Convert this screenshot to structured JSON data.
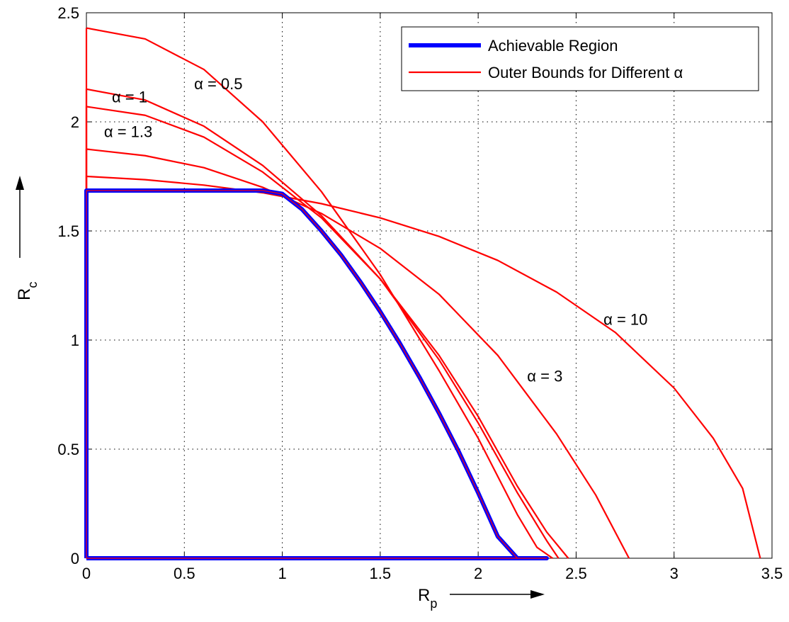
{
  "chart_data": {
    "type": "line",
    "xlabel": "R",
    "xlabel_sub": "p",
    "ylabel": "R",
    "ylabel_sub": "c",
    "xlim": [
      0,
      3.5
    ],
    "ylim": [
      0,
      2.5
    ],
    "xticks": [
      "0",
      "0.5",
      "1",
      "1.5",
      "2",
      "2.5",
      "3",
      "3.5"
    ],
    "yticks": [
      "0",
      "0.5",
      "1",
      "1.5",
      "2",
      "2.5"
    ],
    "grid": true,
    "legend_position": "top-right",
    "legend": [
      {
        "label": "Achievable Region",
        "color": "#0000ff"
      },
      {
        "label": "Outer Bounds for Different α",
        "color": "#ff0000"
      }
    ],
    "achievable_region": {
      "name": "Achievable Region",
      "color": "#0000ff",
      "x": [
        0,
        0,
        0.45,
        0.9,
        1.0,
        1.1,
        1.2,
        1.3,
        1.4,
        1.5,
        1.6,
        1.7,
        1.8,
        1.9,
        2.0,
        2.1,
        2.2,
        2.3,
        2.35,
        0
      ],
      "y": [
        0,
        1.685,
        1.685,
        1.685,
        1.67,
        1.6,
        1.5,
        1.39,
        1.265,
        1.13,
        0.985,
        0.83,
        0.665,
        0.49,
        0.3,
        0.1,
        0,
        0,
        0,
        0
      ]
    },
    "outer_bounds": [
      {
        "alpha": "0.5",
        "color": "#ff0000",
        "x": [
          0,
          0.3,
          0.6,
          0.9,
          1.2,
          1.5,
          1.8,
          2.0,
          2.2,
          2.3,
          2.38
        ],
        "y": [
          2.43,
          2.38,
          2.24,
          2.0,
          1.68,
          1.3,
          0.86,
          0.55,
          0.2,
          0.05,
          0
        ]
      },
      {
        "alpha": "1",
        "color": "#ff0000",
        "x": [
          0,
          0.3,
          0.6,
          0.9,
          1.2,
          1.5,
          1.8,
          2.0,
          2.2,
          2.35,
          2.41
        ],
        "y": [
          2.15,
          2.1,
          1.98,
          1.8,
          1.57,
          1.28,
          0.91,
          0.62,
          0.3,
          0.08,
          0
        ]
      },
      {
        "alpha": "1.3",
        "color": "#ff0000",
        "x": [
          0,
          0.3,
          0.6,
          0.9,
          1.2,
          1.5,
          1.8,
          2.0,
          2.2,
          2.35,
          2.46
        ],
        "y": [
          2.07,
          2.03,
          1.93,
          1.77,
          1.56,
          1.28,
          0.93,
          0.65,
          0.33,
          0.12,
          0
        ]
      },
      {
        "alpha": "3",
        "color": "#ff0000",
        "x": [
          0,
          0.3,
          0.6,
          0.9,
          1.2,
          1.5,
          1.8,
          2.1,
          2.4,
          2.6,
          2.77
        ],
        "y": [
          1.875,
          1.845,
          1.79,
          1.7,
          1.58,
          1.42,
          1.21,
          0.93,
          0.57,
          0.29,
          0
        ]
      },
      {
        "alpha": "10",
        "color": "#ff0000",
        "x": [
          0,
          0.3,
          0.6,
          0.9,
          1.2,
          1.5,
          1.8,
          2.1,
          2.4,
          2.7,
          3.0,
          3.2,
          3.35,
          3.44
        ],
        "y": [
          1.75,
          1.735,
          1.71,
          1.675,
          1.625,
          1.56,
          1.475,
          1.365,
          1.22,
          1.035,
          0.78,
          0.55,
          0.32,
          0
        ]
      }
    ],
    "annotations": [
      {
        "text": "α = 0.5",
        "x": 0.55,
        "y": 2.15
      },
      {
        "text": "α = 1",
        "x": 0.13,
        "y": 2.09
      },
      {
        "text": "α = 1.3",
        "x": 0.09,
        "y": 1.93
      },
      {
        "text": "α = 10",
        "x": 2.64,
        "y": 1.07
      },
      {
        "text": "α = 3",
        "x": 2.25,
        "y": 0.81
      }
    ]
  }
}
